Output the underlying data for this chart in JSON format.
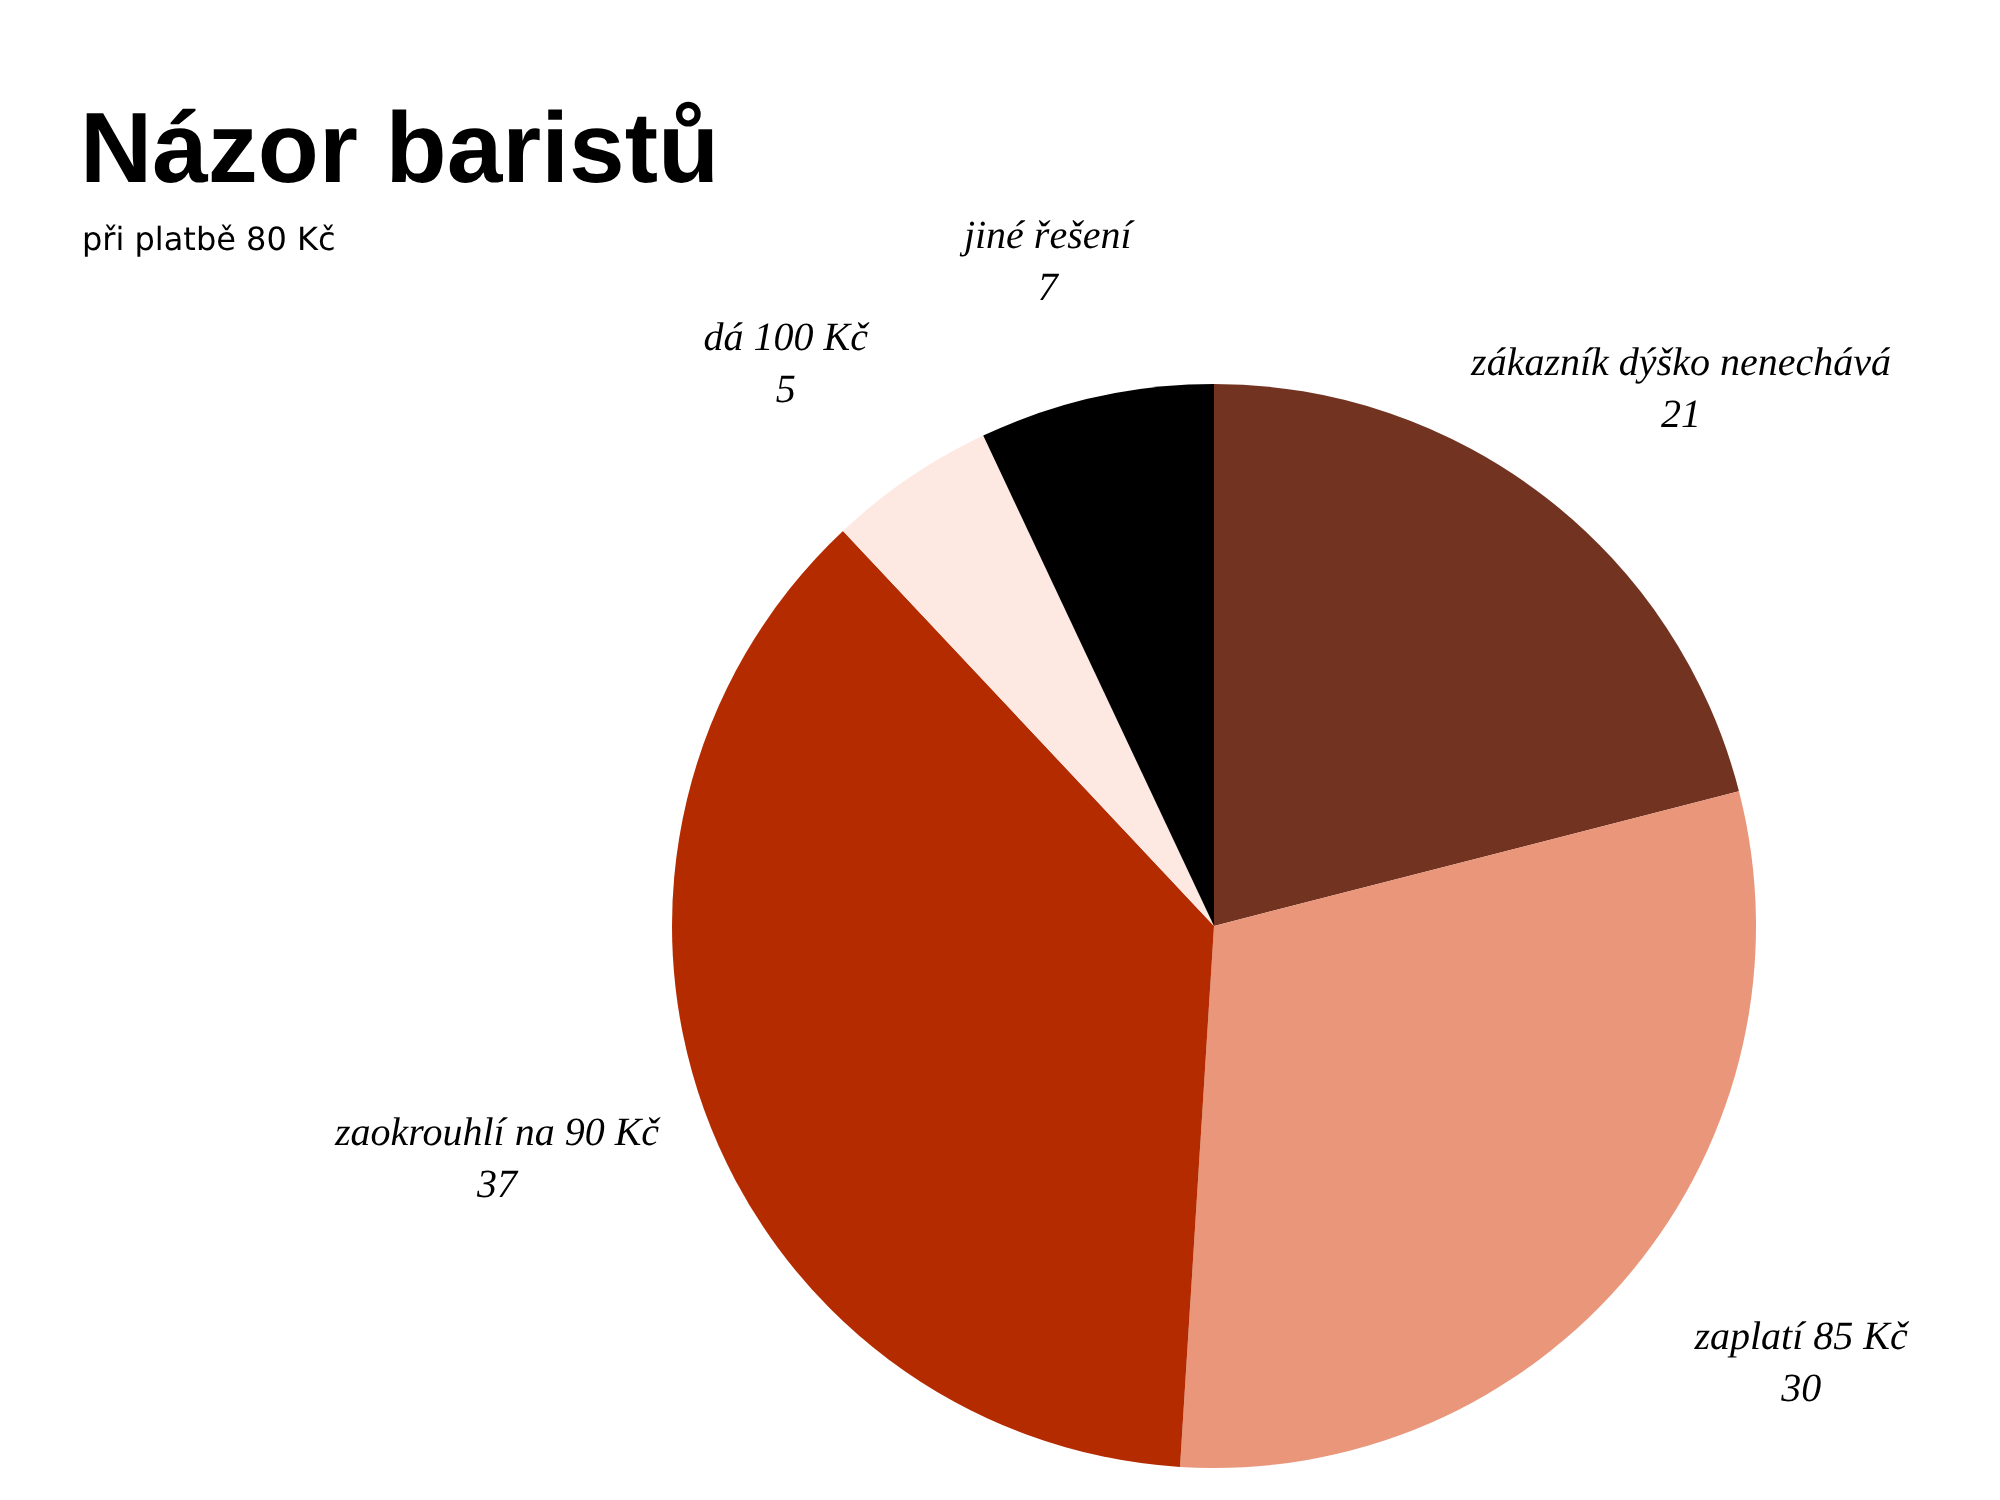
{
  "chart_data": {
    "type": "pie",
    "title": "Názor baristů",
    "subtitle": "při platbě 80 Kč",
    "categories": [
      "zákazník dýško nenechává",
      "zaplatí 85 Kč",
      "zaokrouhlí na 90 Kč",
      "dá 100 Kč",
      "jiné řešení"
    ],
    "values": [
      21,
      30,
      37,
      5,
      7
    ],
    "colors": [
      "#723421",
      "#e9967a",
      "#b52b00",
      "#fde8e2",
      "#000000"
    ],
    "data_labels": true,
    "legend": false
  }
}
